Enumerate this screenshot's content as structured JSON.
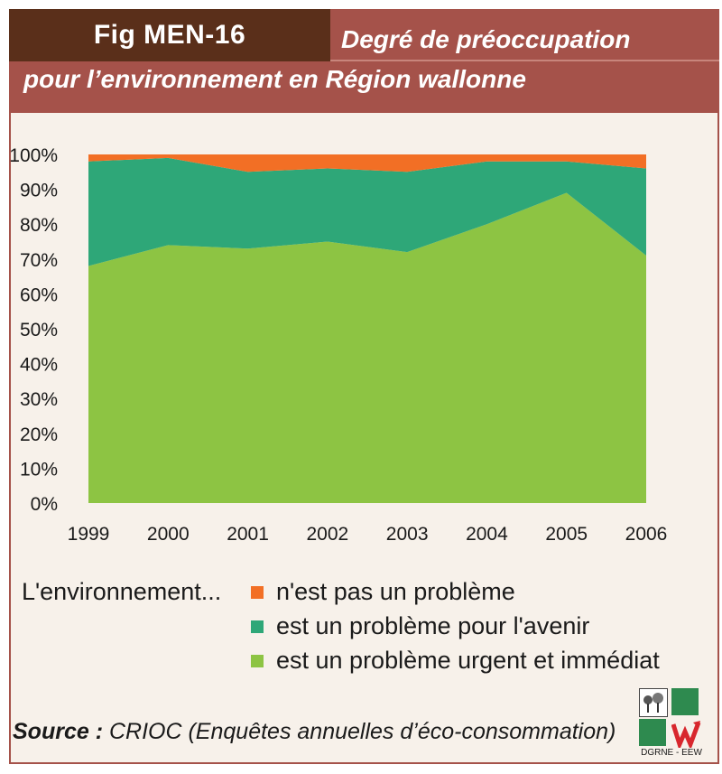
{
  "header": {
    "fig_label": "Fig MEN-16",
    "title_line1": "Degré de préoccupation",
    "title_line2": "pour l’environnement en Région wallonne"
  },
  "colors": {
    "header_band": "#a5524a",
    "fig_box": "#5a2f1a",
    "frame_bg": "#f7f1ea"
  },
  "chart_data": {
    "type": "area",
    "stacked": true,
    "x": [
      "1999",
      "2000",
      "2001",
      "2002",
      "2003",
      "2004",
      "2005",
      "2006"
    ],
    "ylim": [
      0,
      100
    ],
    "yticks": [
      "0%",
      "10%",
      "20%",
      "30%",
      "40%",
      "50%",
      "60%",
      "70%",
      "80%",
      "90%",
      "100%"
    ],
    "series": [
      {
        "name": "est un problème urgent et immédiat",
        "color": "#8dc443",
        "values": [
          68,
          74,
          73,
          75,
          72,
          80,
          89,
          71
        ]
      },
      {
        "name": "est un problème pour l'avenir",
        "color": "#2ea778",
        "values": [
          30,
          25,
          22,
          21,
          23,
          18,
          9,
          25
        ]
      },
      {
        "name": "n'est pas un problème",
        "color": "#f26f25",
        "values": [
          2,
          1,
          5,
          4,
          5,
          2,
          2,
          4
        ]
      }
    ],
    "legend_placement": "bottom",
    "grid": false
  },
  "legend": {
    "lead": "L'environnement...",
    "items": [
      {
        "label": "n'est pas un problème",
        "color": "#f26f25"
      },
      {
        "label": "est un problème pour l'avenir",
        "color": "#2ea778"
      },
      {
        "label": "est un problème urgent et immédiat",
        "color": "#8dc443"
      }
    ]
  },
  "source": {
    "label": "Source :",
    "text": "CRIOC (Enquêtes annuelles d’éco-consommation)"
  },
  "logo": {
    "text": "DGRNE - EEW"
  }
}
